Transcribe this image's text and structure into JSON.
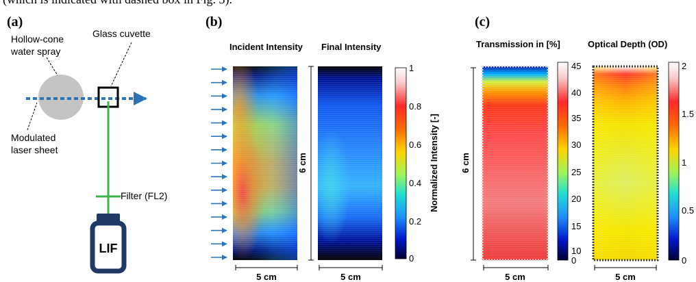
{
  "caption_fragment": "(which is indicated with dashed box in Fig. 3).",
  "panels": {
    "a": {
      "letter": "(a)",
      "spray_label_1": "Hollow-cone",
      "spray_label_2": "water spray",
      "cuvette_label": "Glass cuvette",
      "laser_label_1": "Modulated",
      "laser_label_2": "laser sheet",
      "filter_label": "Filter (FL2)",
      "camera_label": "LIF",
      "colors": {
        "spray": "#c4c4c4",
        "laser": "#2e75b6",
        "signal": "#3cb44b",
        "camera": "#1f3864"
      }
    },
    "b": {
      "letter": "(b)",
      "incident_title": "Incident Intensity",
      "final_title": "Final Intensity",
      "height_label": "6 cm",
      "width_label_1": "5 cm",
      "width_label_2": "5 cm",
      "colorbar_label": "Normalized Intensity [-]",
      "colorbar_ticks": [
        "1",
        "0.8",
        "0.6",
        "0.4",
        "0.2",
        "0"
      ],
      "arrow_color": "#2e75b6"
    },
    "c": {
      "letter": "(c)",
      "trans_title": "Transmission in [%]",
      "od_title": "Optical Depth (OD)",
      "height_label": "6 cm",
      "width_label_1": "5 cm",
      "width_label_2": "5 cm",
      "trans_ticks": [
        "45",
        "40",
        "35",
        "30",
        "25",
        "20",
        "15",
        "10",
        "0"
      ],
      "od_ticks": [
        "2",
        "1.5",
        "1",
        "0.5",
        "0"
      ]
    }
  }
}
